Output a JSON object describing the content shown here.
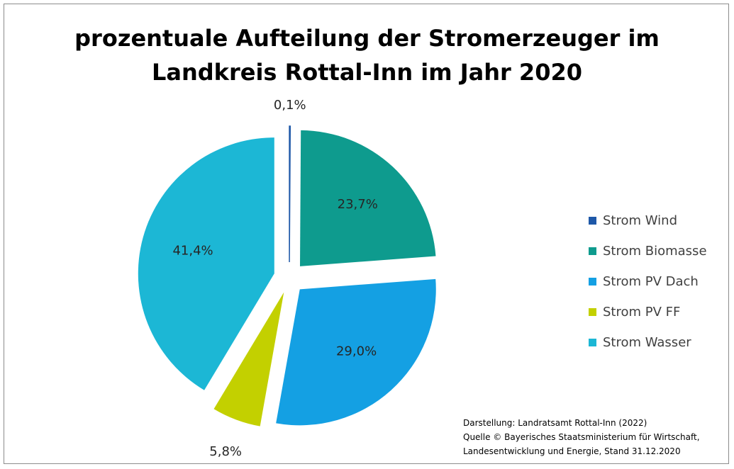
{
  "chart_data": {
    "type": "pie",
    "title_lines": [
      "prozentuale Aufteilung der Stromerzeuger im",
      "Landkreis Rottal-Inn im Jahr 2020"
    ],
    "categories": [
      "Strom Wind",
      "Strom Biomasse",
      "Strom PV Dach",
      "Strom PV FF",
      "Strom Wasser"
    ],
    "values": [
      0.1,
      23.7,
      29.0,
      5.8,
      41.4
    ],
    "value_labels": [
      "0,1%",
      "23,7%",
      "29,0%",
      "5,8%",
      "41,4%"
    ],
    "colors": [
      "#1e58a8",
      "#0e9b8e",
      "#14a0e3",
      "#c3d000",
      "#1cb7d5"
    ],
    "exploded": true,
    "legend_position": "right"
  },
  "source_lines": [
    "Darstellung: Landratsamt Rottal-Inn (2022)",
    "Quelle © Bayerisches Staatsministerium für Wirtschaft,",
    "Landesentwicklung und Energie, Stand 31.12.2020"
  ]
}
